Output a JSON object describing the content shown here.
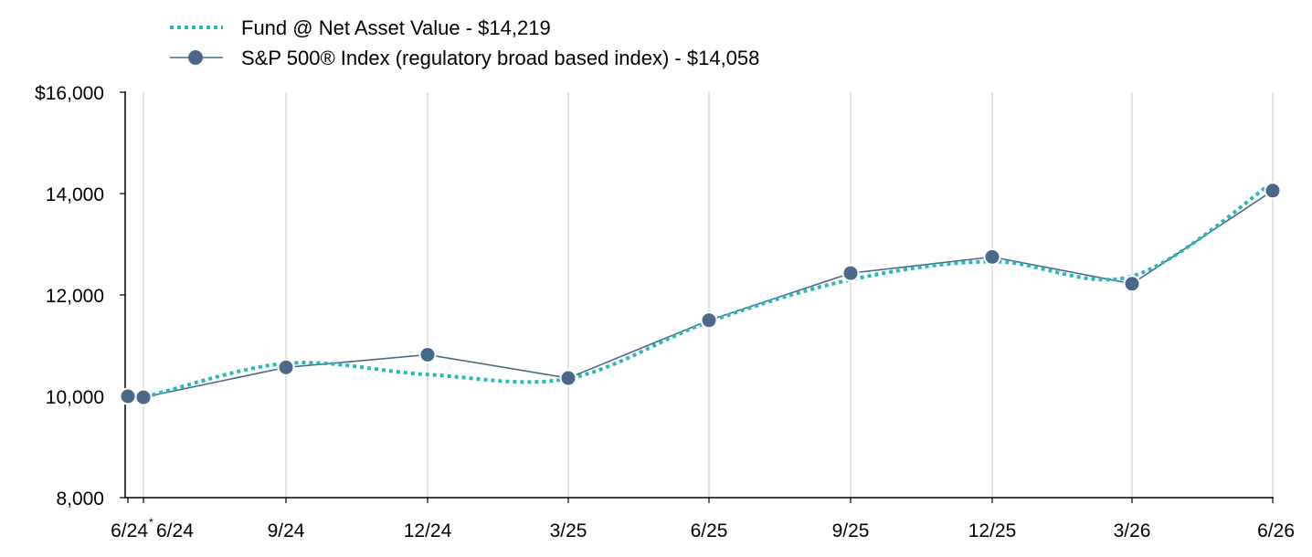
{
  "chart_data": {
    "type": "line",
    "x_labels": [
      "6/24",
      "6/24",
      "9/24",
      "12/24",
      "3/25",
      "6/25",
      "9/25",
      "12/25",
      "3/26",
      "6/26"
    ],
    "x_first_marker": "*",
    "y_ticks": [
      "$16,000",
      "14,000",
      "12,000",
      "10,000",
      "8,000"
    ],
    "ylim": [
      8000,
      16000
    ],
    "grid": "vertical",
    "legend_position": "top-left",
    "series": [
      {
        "name": "Fund @ Net Asset Value - $14,219",
        "style": "dotted",
        "color": "#2ab7b7",
        "values": [
          10000,
          9985,
          10650,
          10430,
          10350,
          11470,
          12300,
          12660,
          12370,
          14219
        ]
      },
      {
        "name": "S&P 500® Index (regulatory broad based index) - $14,058",
        "style": "solid-markers",
        "color": "#4a6889",
        "values": [
          10000,
          9980,
          10570,
          10820,
          10360,
          11500,
          12430,
          12750,
          12220,
          14058
        ]
      }
    ]
  }
}
